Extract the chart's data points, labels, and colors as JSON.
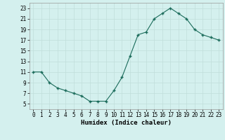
{
  "x": [
    0,
    1,
    2,
    3,
    4,
    5,
    6,
    7,
    8,
    9,
    10,
    11,
    12,
    13,
    14,
    15,
    16,
    17,
    18,
    19,
    20,
    21,
    22,
    23
  ],
  "y": [
    11,
    11,
    9,
    8,
    7.5,
    7,
    6.5,
    5.5,
    5.5,
    5.5,
    7.5,
    10,
    14,
    18,
    18.5,
    21,
    22,
    23,
    22,
    21,
    19,
    18,
    17.5,
    17
  ],
  "line_color": "#1a6b5a",
  "marker_color": "#1a6b5a",
  "bg_color": "#d4f0ee",
  "grid_color": "#c0deda",
  "xlabel": "Humidex (Indice chaleur)",
  "ylim": [
    4,
    24
  ],
  "xlim": [
    -0.5,
    23.5
  ],
  "yticks": [
    5,
    7,
    9,
    11,
    13,
    15,
    17,
    19,
    21,
    23
  ],
  "xtick_labels": [
    "0",
    "1",
    "2",
    "3",
    "4",
    "5",
    "6",
    "7",
    "8",
    "9",
    "10",
    "11",
    "12",
    "13",
    "14",
    "15",
    "16",
    "17",
    "18",
    "19",
    "20",
    "21",
    "22",
    "23"
  ],
  "label_fontsize": 6.5,
  "tick_fontsize": 5.5
}
